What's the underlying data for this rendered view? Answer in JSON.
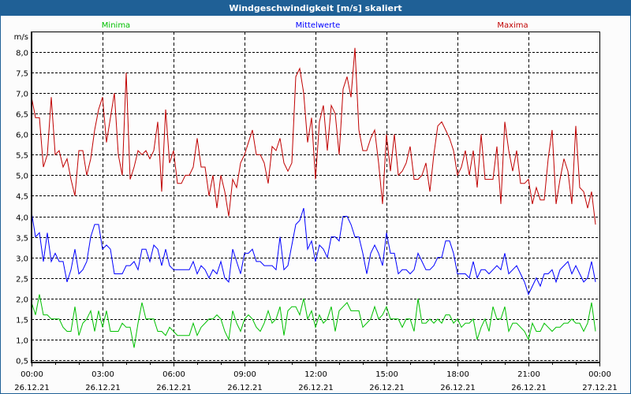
{
  "window": {
    "title": "Windgeschwindigkeit [m/s] skaliert"
  },
  "chart_data": {
    "type": "line",
    "title": "Windgeschwindigkeit [m/s] skaliert",
    "ylabel": "m/s",
    "xlabel": "",
    "ylim": [
      0.5,
      8.0
    ],
    "grid": true,
    "interval_minutes": 10,
    "x_start": "26.12.21 00:00",
    "yticks": [
      "0,5",
      "1,0",
      "1,5",
      "2,0",
      "2,5",
      "3,0",
      "3,5",
      "4,0",
      "4,5",
      "5,0",
      "5,5",
      "6,0",
      "6,5",
      "7,0",
      "7,5",
      "8,0"
    ],
    "ytick_values": [
      0.5,
      1.0,
      1.5,
      2.0,
      2.5,
      3.0,
      3.5,
      4.0,
      4.5,
      5.0,
      5.5,
      6.0,
      6.5,
      7.0,
      7.5,
      8.0
    ],
    "xticks": [
      {
        "time": "00:00",
        "date": "26.12.21",
        "hours": 0
      },
      {
        "time": "03:00",
        "date": "26.12.21",
        "hours": 3
      },
      {
        "time": "06:00",
        "date": "26.12.21",
        "hours": 6
      },
      {
        "time": "09:00",
        "date": "26.12.21",
        "hours": 9
      },
      {
        "time": "12:00",
        "date": "26.12.21",
        "hours": 12
      },
      {
        "time": "15:00",
        "date": "26.12.21",
        "hours": 15
      },
      {
        "time": "18:00",
        "date": "26.12.21",
        "hours": 18
      },
      {
        "time": "21:00",
        "date": "26.12.21",
        "hours": 21
      },
      {
        "time": "00:00",
        "date": "27.12.21",
        "hours": 24
      }
    ],
    "xlim_hours": [
      0,
      24
    ],
    "legend_placement": "top",
    "series": [
      {
        "name": "Minima",
        "color": "#00c000",
        "values": [
          1.9,
          1.6,
          2.1,
          1.6,
          1.6,
          1.5,
          1.5,
          1.5,
          1.3,
          1.2,
          1.2,
          1.8,
          1.1,
          1.4,
          1.5,
          1.7,
          1.2,
          1.7,
          1.3,
          1.7,
          1.2,
          1.2,
          1.2,
          1.4,
          1.3,
          1.3,
          0.8,
          1.4,
          1.9,
          1.5,
          1.5,
          1.5,
          1.2,
          1.2,
          1.1,
          1.3,
          1.2,
          1.1,
          1.1,
          1.1,
          1.1,
          1.4,
          1.1,
          1.3,
          1.4,
          1.5,
          1.5,
          1.6,
          1.5,
          1.2,
          1.0,
          1.7,
          1.4,
          1.2,
          1.5,
          1.6,
          1.5,
          1.3,
          1.2,
          1.4,
          1.7,
          1.4,
          1.5,
          1.8,
          1.1,
          1.7,
          1.8,
          1.8,
          1.6,
          2.0,
          1.5,
          1.7,
          1.3,
          1.6,
          1.4,
          1.5,
          1.8,
          1.2,
          1.7,
          1.8,
          1.9,
          1.7,
          1.7,
          1.7,
          1.3,
          1.4,
          1.5,
          1.8,
          1.5,
          1.6,
          1.8,
          1.5,
          1.5,
          1.5,
          1.3,
          1.5,
          1.5,
          1.2,
          2.0,
          1.4,
          1.4,
          1.5,
          1.4,
          1.5,
          1.4,
          1.6,
          1.6,
          1.4,
          1.5,
          1.3,
          1.4,
          1.4,
          1.5,
          1.0,
          1.3,
          1.5,
          1.2,
          1.8,
          1.5,
          1.5,
          1.8,
          1.2,
          1.4,
          1.4,
          1.3,
          1.2,
          1.0,
          1.4,
          1.2,
          1.2,
          1.4,
          1.3,
          1.2,
          1.3,
          1.3,
          1.4,
          1.4,
          1.5,
          1.4,
          1.4,
          1.2,
          1.4,
          1.9,
          1.2
        ]
      },
      {
        "name": "Mittelwerte",
        "color": "#0000ff",
        "values": [
          4.1,
          3.5,
          3.6,
          2.9,
          3.6,
          2.9,
          3.1,
          2.9,
          2.9,
          2.4,
          2.7,
          3.2,
          2.6,
          2.7,
          2.9,
          3.5,
          3.8,
          3.8,
          3.2,
          3.3,
          3.2,
          2.6,
          2.6,
          2.6,
          2.8,
          2.8,
          2.9,
          2.7,
          3.2,
          3.2,
          2.9,
          3.3,
          3.2,
          2.8,
          3.2,
          2.8,
          2.7,
          2.7,
          2.7,
          2.7,
          2.7,
          2.9,
          2.6,
          2.8,
          2.7,
          2.5,
          2.7,
          2.6,
          2.9,
          2.5,
          2.4,
          3.2,
          2.9,
          2.6,
          3.1,
          3.1,
          3.2,
          2.9,
          2.9,
          2.8,
          2.8,
          2.8,
          2.7,
          3.5,
          2.7,
          2.8,
          3.3,
          3.8,
          3.9,
          4.2,
          3.2,
          3.4,
          2.9,
          3.3,
          3.2,
          3.0,
          3.5,
          3.5,
          3.4,
          4.0,
          4.0,
          3.8,
          3.5,
          3.5,
          3.1,
          2.6,
          3.1,
          3.3,
          3.1,
          2.8,
          3.6,
          3.1,
          3.1,
          2.6,
          2.7,
          2.7,
          2.6,
          2.7,
          3.1,
          2.9,
          2.7,
          2.7,
          2.8,
          3.0,
          3.0,
          3.4,
          3.4,
          3.1,
          2.6,
          2.6,
          2.6,
          2.5,
          2.9,
          2.5,
          2.7,
          2.7,
          2.6,
          2.7,
          2.8,
          2.7,
          3.1,
          2.6,
          2.7,
          2.8,
          2.6,
          2.4,
          2.1,
          2.3,
          2.5,
          2.3,
          2.6,
          2.6,
          2.7,
          2.4,
          2.7,
          2.8,
          2.9,
          2.6,
          2.8,
          2.6,
          2.4,
          2.5,
          2.9,
          2.4
        ]
      },
      {
        "name": "Maxima",
        "color": "#c00000",
        "values": [
          6.9,
          6.4,
          6.4,
          5.2,
          5.5,
          6.9,
          5.5,
          5.6,
          5.2,
          5.4,
          4.9,
          4.5,
          5.6,
          5.6,
          5.0,
          5.4,
          6.1,
          6.6,
          6.9,
          5.8,
          6.4,
          7.0,
          5.5,
          5.0,
          7.5,
          4.9,
          5.2,
          5.6,
          5.5,
          5.6,
          5.4,
          5.6,
          6.3,
          4.6,
          6.6,
          5.3,
          5.6,
          4.8,
          4.8,
          5.0,
          5.0,
          5.2,
          5.9,
          5.2,
          5.2,
          4.5,
          5.0,
          4.2,
          5.0,
          4.6,
          4.0,
          4.9,
          4.7,
          5.3,
          5.5,
          5.8,
          6.1,
          5.5,
          5.5,
          5.3,
          4.8,
          5.7,
          5.6,
          5.9,
          5.3,
          5.1,
          5.3,
          7.4,
          7.6,
          7.0,
          5.8,
          6.4,
          4.9,
          6.3,
          6.7,
          5.6,
          6.7,
          6.5,
          5.5,
          7.1,
          7.4,
          6.9,
          8.1,
          6.1,
          5.6,
          5.6,
          5.9,
          6.1,
          5.3,
          4.3,
          6.0,
          5.1,
          6.0,
          5.0,
          5.1,
          5.3,
          5.7,
          4.9,
          4.9,
          5.0,
          5.3,
          4.6,
          5.5,
          6.2,
          6.3,
          6.1,
          5.9,
          5.6,
          5.0,
          5.2,
          5.6,
          5.0,
          5.6,
          4.7,
          6.0,
          4.9,
          4.9,
          4.9,
          5.7,
          4.3,
          6.3,
          5.6,
          5.1,
          5.6,
          4.8,
          4.8,
          4.9,
          4.3,
          4.7,
          4.4,
          4.4,
          5.4,
          6.1,
          4.3,
          4.9,
          5.4,
          5.1,
          4.3,
          6.2,
          4.7,
          4.6,
          4.2,
          4.6,
          3.8
        ]
      }
    ]
  }
}
